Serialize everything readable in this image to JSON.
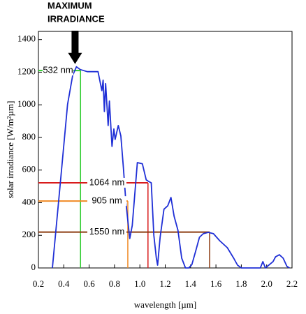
{
  "chart_data": {
    "type": "line",
    "annotation": [
      "MAXIMUM",
      "IRRADIANCE"
    ],
    "xlabel": "wavelength [µm]",
    "ylabel": "solar irradiance [W/m²µm]",
    "xlim": [
      0.2,
      2.2
    ],
    "ylim": [
      0,
      1450
    ],
    "xticks": [
      0.2,
      0.4,
      0.6,
      0.8,
      {
        "value": 1,
        "label": "1.0"
      },
      1.2,
      1.4,
      1.6,
      1.8,
      {
        "value": 2,
        "label": "2.0"
      },
      2.2
    ],
    "yticks": [
      0,
      200,
      400,
      600,
      800,
      1000,
      1200,
      1400
    ],
    "color": "#1f2fd6",
    "x": [
      0.31,
      0.37,
      0.43,
      0.47,
      0.5,
      0.53,
      0.585,
      0.67,
      0.7,
      0.71,
      0.72,
      0.73,
      0.75,
      0.76,
      0.78,
      0.795,
      0.805,
      0.83,
      0.85,
      0.87,
      0.89,
      0.92,
      0.94,
      0.98,
      1.02,
      1.05,
      1.07,
      1.09,
      1.11,
      1.13,
      1.14,
      1.16,
      1.19,
      1.22,
      1.245,
      1.27,
      1.3,
      1.33,
      1.36,
      1.385,
      1.41,
      1.44,
      1.47,
      1.5,
      1.54,
      1.58,
      1.63,
      1.69,
      1.74,
      1.77,
      1.8,
      1.95,
      1.97,
      1.99,
      2.05,
      2.07,
      2.1,
      2.13,
      2.16,
      2.18
    ],
    "values": [
      0,
      500,
      1002,
      1180,
      1233,
      1216,
      1203,
      1203,
      1087,
      1151,
      959,
      1130,
      873,
      1023,
      745,
      852,
      788,
      873,
      809,
      616,
      402,
      180,
      260,
      646,
      638,
      540,
      530,
      522,
      200,
      60,
      17,
      188,
      360,
      381,
      432,
      317,
      231,
      60,
      0,
      0,
      20,
      103,
      188,
      210,
      218,
      210,
      167,
      124,
      60,
      17,
      0,
      0,
      39,
      0,
      39,
      68,
      81,
      60,
      10,
      0
    ],
    "markers": [
      {
        "label": "532 nm",
        "x": 0.532,
        "y": 1210,
        "color": "#2ecc2e"
      },
      {
        "label": "1064 nm",
        "x": 1.064,
        "y": 522,
        "color": "#d81b1b"
      },
      {
        "label": "905 nm",
        "x": 0.905,
        "y": 410,
        "color": "#f08a24"
      },
      {
        "label": "1550 nm",
        "x": 1.55,
        "y": 220,
        "color": "#8b3a0f"
      }
    ]
  }
}
